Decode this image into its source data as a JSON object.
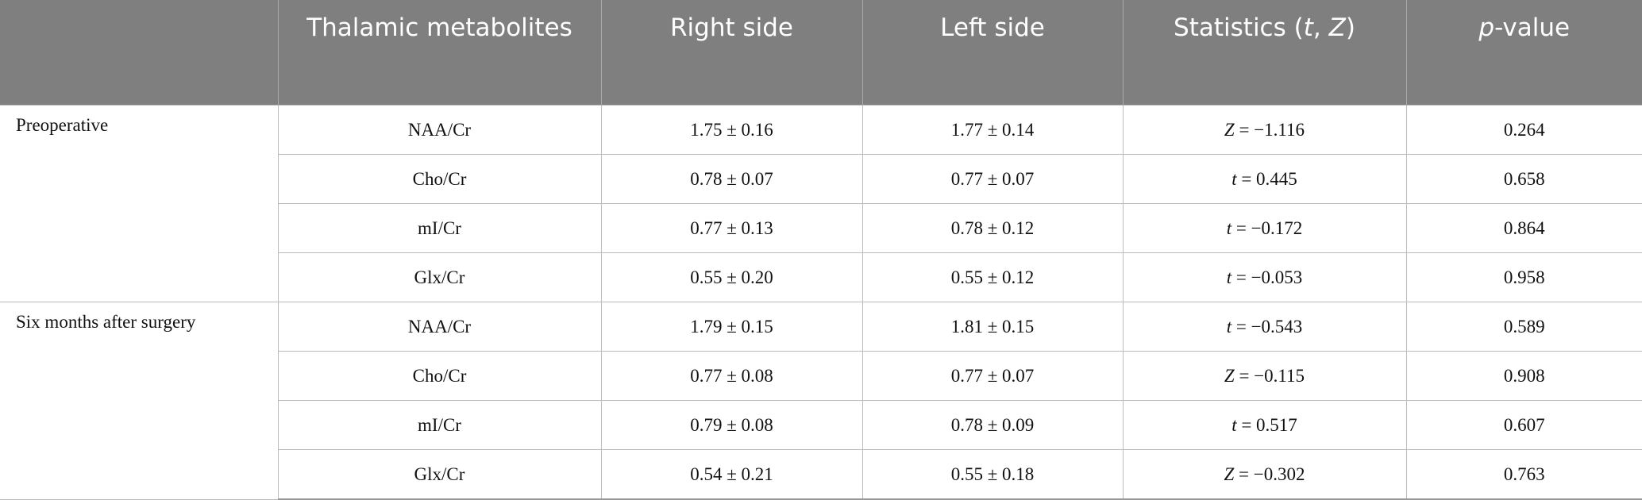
{
  "header": {
    "metabolites": "Thalamic metabolites",
    "right": "Right side",
    "left": "Left side",
    "statistics": {
      "prefix": "Statistics (",
      "t": "t",
      "sep": ", ",
      "z": "Z",
      "suffix": ")"
    },
    "p_value": {
      "italic": "p",
      "rest": "-value"
    }
  },
  "groups": [
    {
      "label": "Preoperative",
      "rows": [
        {
          "metabolite": "NAA/Cr",
          "right": "1.75 ± 0.16",
          "left": "1.77 ± 0.14",
          "stat": {
            "symbol": "Z",
            "value": "= −1.116"
          },
          "p": "0.264"
        },
        {
          "metabolite": "Cho/Cr",
          "right": "0.78 ± 0.07",
          "left": "0.77 ± 0.07",
          "stat": {
            "symbol": "t",
            "value": "= 0.445"
          },
          "p": "0.658"
        },
        {
          "metabolite": "mI/Cr",
          "right": "0.77 ± 0.13",
          "left": "0.78 ± 0.12",
          "stat": {
            "symbol": "t",
            "value": "= −0.172"
          },
          "p": "0.864"
        },
        {
          "metabolite": "Glx/Cr",
          "right": "0.55 ± 0.20",
          "left": "0.55 ± 0.12",
          "stat": {
            "symbol": "t",
            "value": "= −0.053"
          },
          "p": "0.958"
        }
      ]
    },
    {
      "label": "Six months after surgery",
      "rows": [
        {
          "metabolite": "NAA/Cr",
          "right": "1.79 ± 0.15",
          "left": "1.81 ± 0.15",
          "stat": {
            "symbol": "t",
            "value": "= −0.543"
          },
          "p": "0.589"
        },
        {
          "metabolite": "Cho/Cr",
          "right": "0.77 ± 0.08",
          "left": "0.77 ± 0.07",
          "stat": {
            "symbol": "Z",
            "value": "= −0.115"
          },
          "p": "0.908"
        },
        {
          "metabolite": "mI/Cr",
          "right": "0.79 ± 0.08",
          "left": "0.78 ± 0.09",
          "stat": {
            "symbol": "t",
            "value": "= 0.517"
          },
          "p": "0.607"
        },
        {
          "metabolite": "Glx/Cr",
          "right": "0.54 ± 0.21",
          "left": "0.55 ± 0.18",
          "stat": {
            "symbol": "Z",
            "value": "= −0.302"
          },
          "p": "0.763"
        }
      ]
    }
  ]
}
